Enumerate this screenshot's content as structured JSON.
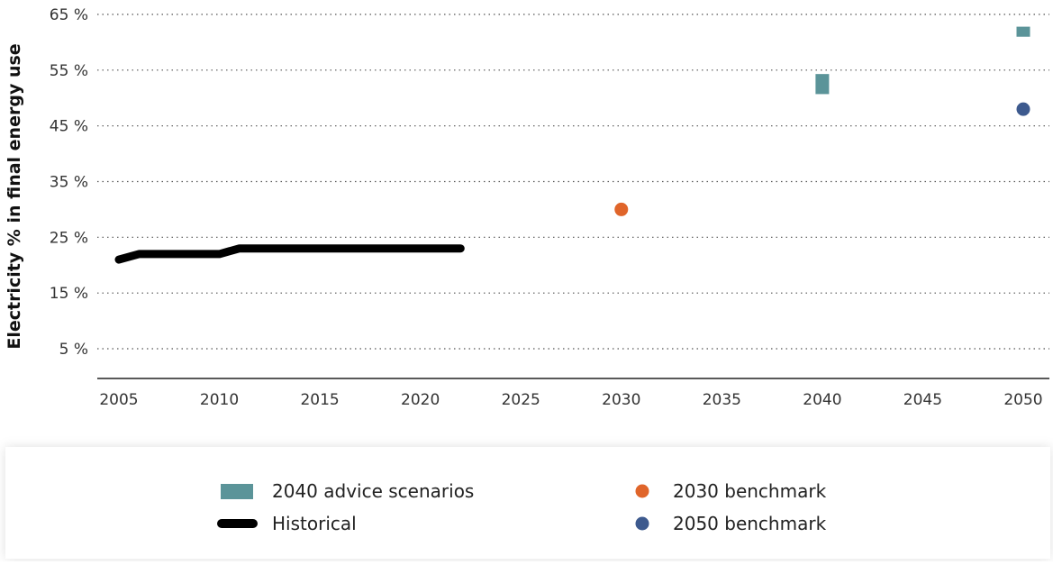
{
  "chart_data": {
    "type": "line",
    "title": "",
    "xlabel": "",
    "ylabel": "Electricity % in final energy use",
    "xlim": [
      2005,
      2050
    ],
    "ylim": [
      0,
      65
    ],
    "x_ticks": [
      "2005",
      "2010",
      "2015",
      "2020",
      "2025",
      "2030",
      "2035",
      "2040",
      "2045",
      "2050"
    ],
    "y_ticks": [
      {
        "value": 5,
        "label": "5 %"
      },
      {
        "value": 15,
        "label": "15 %"
      },
      {
        "value": 25,
        "label": "25 %"
      },
      {
        "value": 35,
        "label": "35 %"
      },
      {
        "value": 45,
        "label": "45 %"
      },
      {
        "value": 55,
        "label": "55 %"
      },
      {
        "value": 65,
        "label": "65 %"
      }
    ],
    "grid": "horizontal-dotted",
    "legend_position": "bottom",
    "series": [
      {
        "name": "Historical",
        "kind": "line",
        "color": "#000000",
        "x": [
          2005,
          2006,
          2007,
          2008,
          2009,
          2010,
          2011,
          2012,
          2013,
          2014,
          2015,
          2016,
          2017,
          2018,
          2019,
          2020,
          2021,
          2022
        ],
        "y": [
          21,
          22,
          22,
          22,
          22,
          22,
          23,
          23,
          23,
          23,
          23,
          23,
          23,
          23,
          23,
          23,
          23,
          23
        ]
      },
      {
        "name": "2040 advice scenarios",
        "kind": "range-bar",
        "color": "#5b9499",
        "points": [
          {
            "x": 2040,
            "low": 50.7,
            "high": 54.3
          },
          {
            "x": 2050,
            "low": 61,
            "high": 62.8
          }
        ]
      },
      {
        "name": "2030 benchmark",
        "kind": "point",
        "color": "#e0652a",
        "points": [
          {
            "x": 2030,
            "y": 30
          }
        ]
      },
      {
        "name": "2050 benchmark",
        "kind": "point",
        "color": "#3d5a8e",
        "points": [
          {
            "x": 2050,
            "y": 48
          }
        ]
      }
    ],
    "legend": {
      "scenarios_label": "2040 advice scenarios",
      "historical_label": "Historical",
      "benchmark_2030_label": "2030 benchmark",
      "benchmark_2050_label": "2050 benchmark"
    }
  }
}
